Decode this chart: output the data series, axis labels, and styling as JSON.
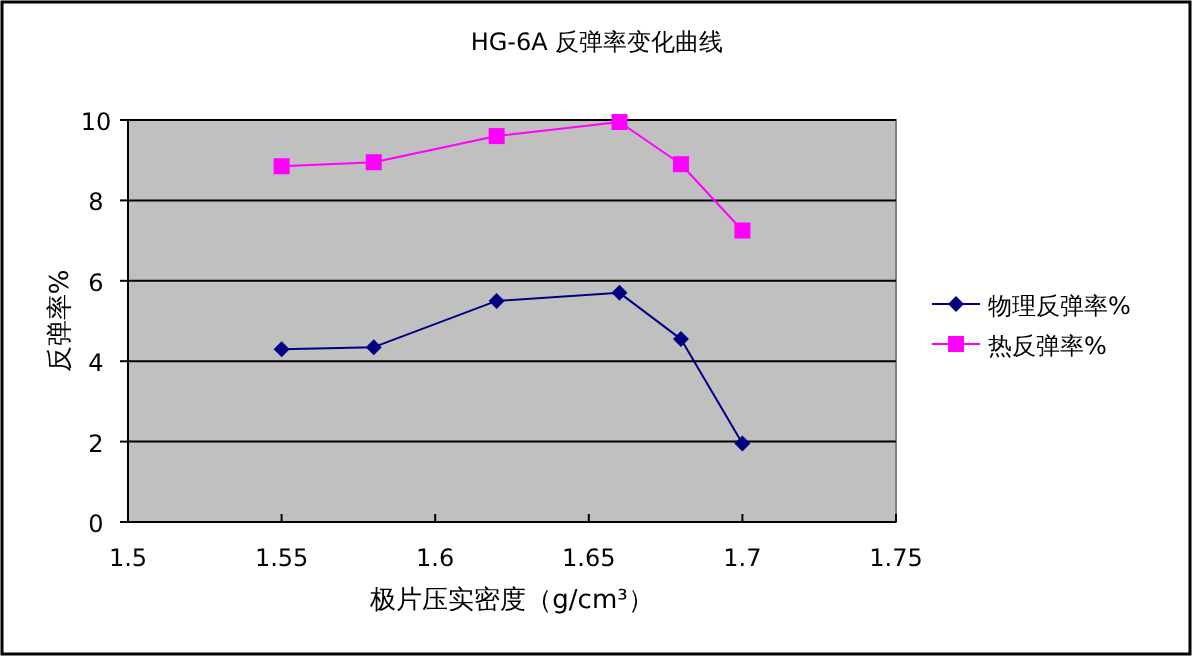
{
  "chart_data": {
    "type": "line",
    "title": "HG-6A 反弹率变化曲线",
    "xlabel": "极片压实密度（g/cm³）",
    "ylabel": "反弹率%",
    "x": [
      1.55,
      1.58,
      1.62,
      1.66,
      1.68,
      1.7
    ],
    "series": [
      {
        "name": "物理反弹率%",
        "color": "#000080",
        "marker": "diamond",
        "values": [
          4.3,
          4.35,
          5.5,
          5.7,
          4.55,
          1.95
        ]
      },
      {
        "name": "热反弹率%",
        "color": "#ff00ff",
        "marker": "square",
        "values": [
          8.85,
          8.95,
          9.6,
          9.95,
          8.9,
          7.25
        ]
      }
    ],
    "xlim": [
      1.5,
      1.75
    ],
    "xticks": [
      1.5,
      1.55,
      1.6,
      1.65,
      1.7,
      1.75
    ],
    "ylim": [
      0,
      10
    ],
    "yticks": [
      0,
      2,
      4,
      6,
      8,
      10
    ],
    "grid": "y",
    "legend": "right",
    "line_style": "solid"
  }
}
